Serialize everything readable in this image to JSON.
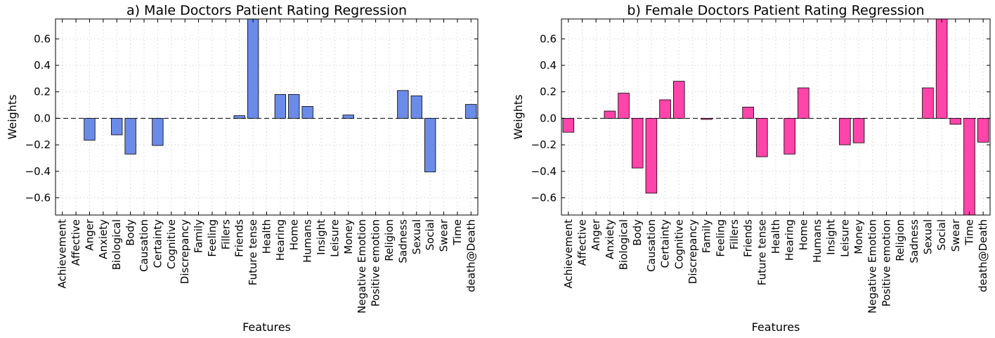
{
  "chart_data": [
    {
      "type": "bar",
      "title": "a) Male Doctors Patient Rating Regression",
      "xlabel": "Features",
      "ylabel": "Weights",
      "ylim": [
        -0.73,
        0.75
      ],
      "yticks": [
        -0.6,
        -0.4,
        -0.2,
        0.0,
        0.2,
        0.4,
        0.6
      ],
      "ytick_labels": [
        "−0.6",
        "−0.4",
        "−0.2",
        "0.0",
        "0.2",
        "0.4",
        "0.6"
      ],
      "grid": true,
      "color": "#6b8be8",
      "categories": [
        "Achievement",
        "Affective",
        "Anger",
        "Anxiety",
        "Biological",
        "Body",
        "Causation",
        "Certainty",
        "Cognitive",
        "Discrepancy",
        "Family",
        "Feeling",
        "Fillers",
        "Friends",
        "Future tense",
        "Health",
        "Hearing",
        "Home",
        "Humans",
        "Insight",
        "Leisure",
        "Money",
        "Negative Emotion",
        "Positive emotion",
        "Religion",
        "Sadness",
        "Sexual",
        "Social",
        "Swear",
        "Time",
        "death@Death"
      ],
      "values": [
        0.0,
        0.0,
        -0.165,
        0.0,
        -0.125,
        -0.27,
        0.0,
        -0.205,
        0.0,
        0.0,
        0.0,
        0.0,
        0.0,
        0.02,
        0.75,
        0.0,
        0.18,
        0.18,
        0.09,
        0.0,
        0.0,
        0.025,
        0.0,
        0.0,
        0.0,
        0.21,
        0.17,
        -0.405,
        0.0,
        0.0,
        0.105
      ]
    },
    {
      "type": "bar",
      "title": "b) Female Doctors Patient Rating Regression",
      "xlabel": "Features",
      "ylabel": "Weights",
      "ylim": [
        -0.73,
        0.75
      ],
      "yticks": [
        -0.6,
        -0.4,
        -0.2,
        0.0,
        0.2,
        0.4,
        0.6
      ],
      "ytick_labels": [
        "−0.6",
        "−0.4",
        "−0.2",
        "0.0",
        "0.2",
        "0.4",
        "0.6"
      ],
      "grid": true,
      "color": "#ff44aa",
      "categories": [
        "Achievement",
        "Affective",
        "Anger",
        "Anxiety",
        "Biological",
        "Body",
        "Causation",
        "Certainty",
        "Cognitive",
        "Discrepancy",
        "Family",
        "Feeling",
        "Fillers",
        "Friends",
        "Future tense",
        "Health",
        "Hearing",
        "Home",
        "Humans",
        "Insight",
        "Leisure",
        "Money",
        "Negative Emotion",
        "Positive emotion",
        "Religion",
        "Sadness",
        "Sexual",
        "Social",
        "Swear",
        "Time",
        "death@Death"
      ],
      "values": [
        -0.105,
        0.0,
        0.0,
        0.055,
        0.19,
        -0.375,
        -0.565,
        0.14,
        0.28,
        0.0,
        -0.008,
        0.0,
        0.0,
        0.085,
        -0.29,
        0.0,
        -0.27,
        0.23,
        0.0,
        0.0,
        -0.2,
        -0.185,
        0.0,
        0.0,
        0.0,
        0.0,
        0.23,
        0.75,
        -0.045,
        -0.73,
        -0.18
      ]
    }
  ]
}
